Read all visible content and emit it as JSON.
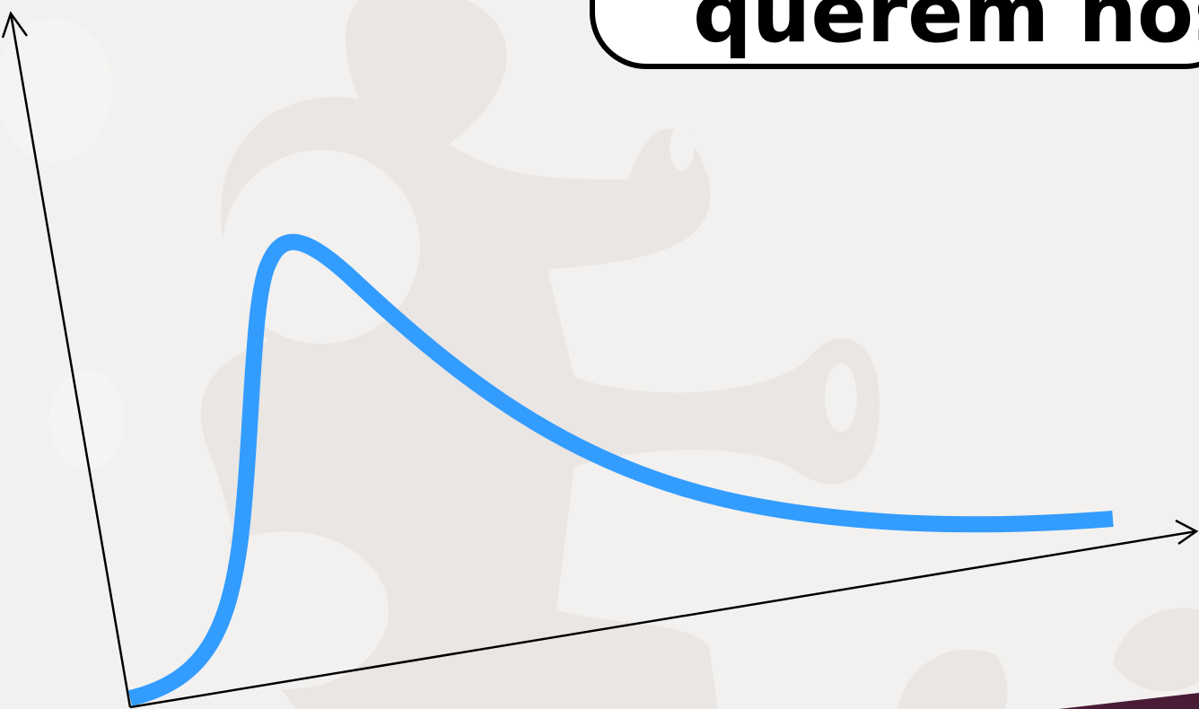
{
  "banner": {
    "text": "querem nos"
  }
}
